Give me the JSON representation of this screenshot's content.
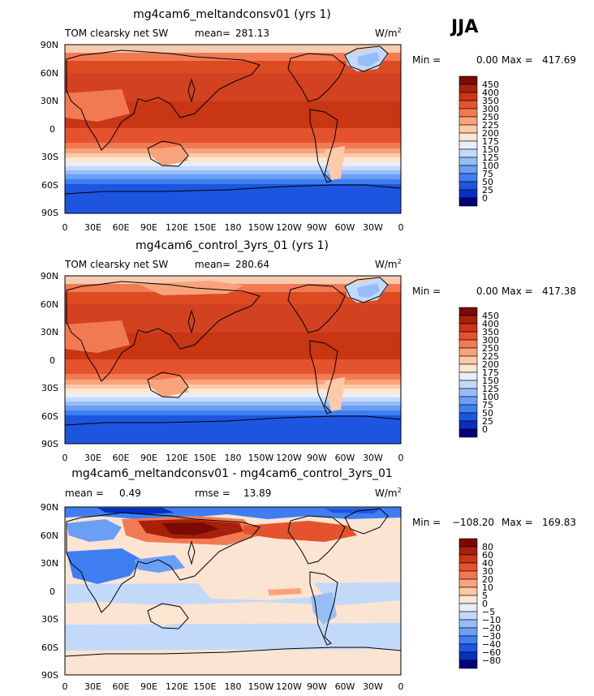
{
  "season": "JJA",
  "units": "W/m",
  "units_exp": "2",
  "lat_ticks": [
    "90N",
    "60N",
    "30N",
    "0",
    "30S",
    "60S",
    "90S"
  ],
  "lon_ticks": [
    "0",
    "30E",
    "60E",
    "90E",
    "120E",
    "150E",
    "180",
    "150W",
    "120W",
    "90W",
    "60W",
    "30W",
    "0"
  ],
  "colors": {
    "abs": [
      "#00007c",
      "#0a2fc0",
      "#1e55e0",
      "#3f7ef0",
      "#6b9ef5",
      "#97bdf7",
      "#c3d9fa",
      "#e6eefc",
      "#fde6d2",
      "#fccaa8",
      "#f9a37c",
      "#f27a52",
      "#e4532e",
      "#cc3517",
      "#a8200b",
      "#7a0a03"
    ],
    "diff": [
      "#00007c",
      "#0a2fc0",
      "#1e55e0",
      "#3f7ef0",
      "#6b9ef5",
      "#97bdf7",
      "#c3d9fa",
      "#e6eefc",
      "#fbe4d2",
      "#fcc9a5",
      "#f9a37c",
      "#f27a52",
      "#e4532e",
      "#cc3517",
      "#a8200b",
      "#7a0a03"
    ]
  },
  "chart_data": [
    {
      "type": "heatmap",
      "title": "mg4cam6_meltandconsv01 (yrs 1)",
      "left_label": "TOM clearsky net SW",
      "mean_label": "mean=",
      "mean_value": "281.13",
      "min_label": "Min =",
      "min_value": "0.00",
      "max_label": "Max =",
      "max_value": "417.69",
      "levels": [
        "450",
        "400",
        "350",
        "300",
        "250",
        "225",
        "200",
        "175",
        "150",
        "125",
        "100",
        "75",
        "50",
        "25",
        "0"
      ],
      "lat_range": [
        -90,
        90
      ],
      "lon_range": [
        0,
        360
      ]
    },
    {
      "type": "heatmap",
      "title": "mg4cam6_control_3yrs_01 (yrs 1)",
      "left_label": "TOM clearsky net SW",
      "mean_label": "mean=",
      "mean_value": "280.64",
      "min_label": "Min =",
      "min_value": "0.00",
      "max_label": "Max =",
      "max_value": "417.38",
      "levels": [
        "450",
        "400",
        "350",
        "300",
        "250",
        "225",
        "200",
        "175",
        "150",
        "125",
        "100",
        "75",
        "50",
        "25",
        "0"
      ],
      "lat_range": [
        -90,
        90
      ],
      "lon_range": [
        0,
        360
      ]
    },
    {
      "type": "heatmap",
      "title": "mg4cam6_meltandconsv01 - mg4cam6_control_3yrs_01",
      "left_label": "mean =",
      "mean_label": "",
      "mean_value": "0.49",
      "rmse_label": "rmse =",
      "rmse_value": "13.89",
      "min_label": "Min =",
      "min_value": "−108.20",
      "max_label": "Max =",
      "max_value": "169.83",
      "levels": [
        "80",
        "60",
        "40",
        "30",
        "20",
        "10",
        "5",
        "0",
        "−5",
        "−10",
        "−20",
        "−30",
        "−40",
        "−60",
        "−80"
      ],
      "lat_range": [
        -90,
        90
      ],
      "lon_range": [
        0,
        360
      ]
    }
  ]
}
